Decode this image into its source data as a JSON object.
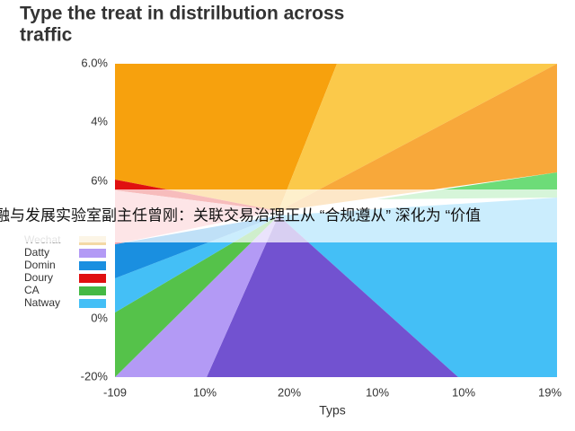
{
  "title": "Type the treat in distrilbution across traffic",
  "y_axis_labels": [
    "6.0%",
    "4%",
    "6%",
    "0%",
    "-20%"
  ],
  "x_axis_labels": [
    "-109",
    "10%",
    "20%",
    "10%",
    "10%",
    "19%"
  ],
  "x_axis_title": "Typs",
  "legend": [
    {
      "label": "Wechat",
      "color": "#f3d9a6"
    },
    {
      "label": "Datty",
      "color": "#b39af5"
    },
    {
      "label": "Domin",
      "color": "#1a8fe0"
    },
    {
      "label": "Doury",
      "color": "#e01010"
    },
    {
      "label": "CA",
      "color": "#44b944"
    },
    {
      "label": "Natway",
      "color": "#44bff6"
    }
  ],
  "banner": "融与发展实验室副主任曾刚：关联交易治理正从 “合规遵从” 深化为 “价值"
}
